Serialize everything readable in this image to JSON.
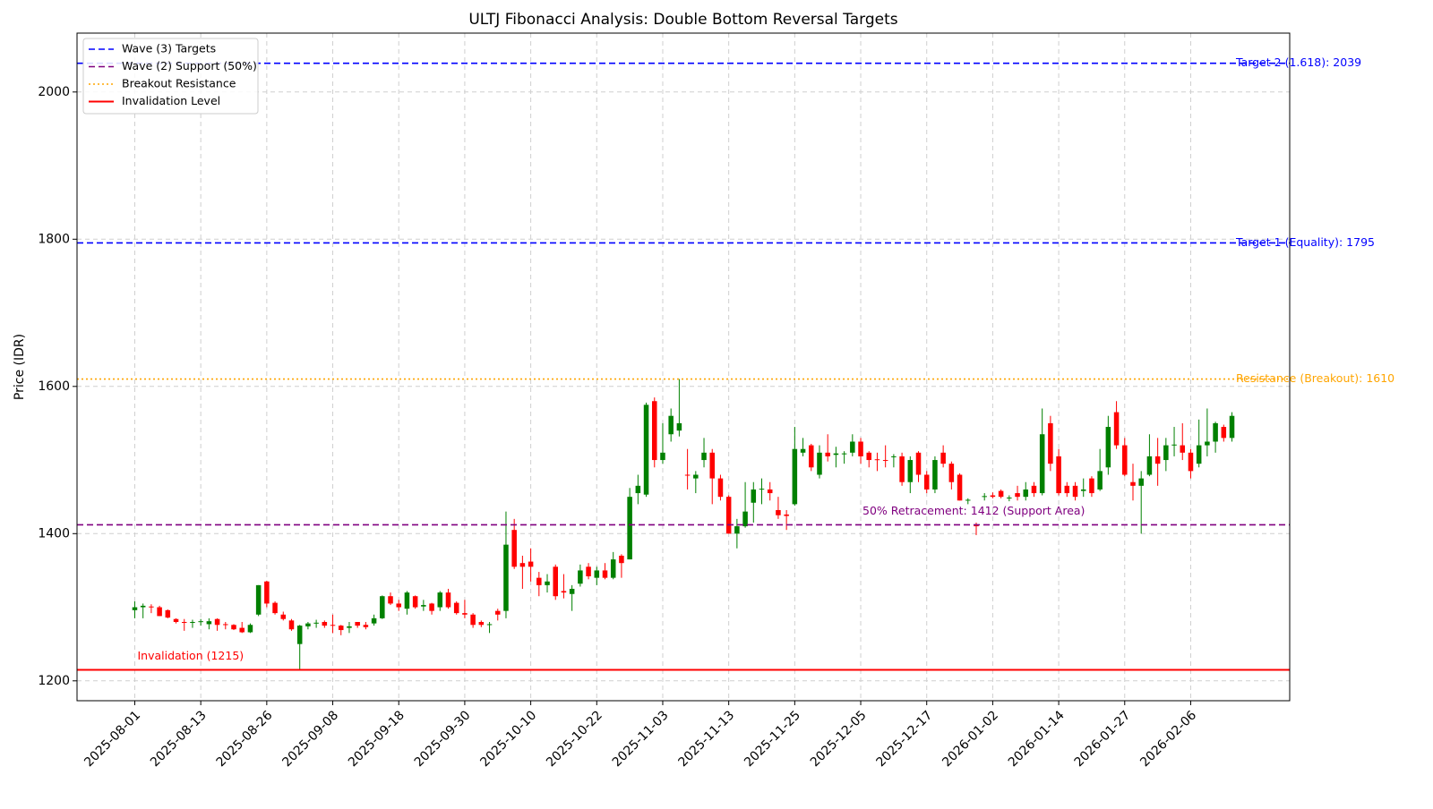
{
  "chart_data": {
    "type": "candlestick",
    "title": "ULTJ Fibonacci Analysis: Double Bottom Reversal Targets",
    "ylabel": "Price (IDR)",
    "categories": [
      "2025-08-01",
      null,
      null,
      null,
      null,
      null,
      null,
      null,
      "2025-08-13",
      null,
      null,
      null,
      null,
      null,
      null,
      null,
      "2025-08-26",
      null,
      null,
      null,
      null,
      null,
      null,
      null,
      "2025-09-08",
      null,
      null,
      null,
      null,
      null,
      null,
      null,
      "2025-09-18",
      null,
      null,
      null,
      null,
      null,
      null,
      null,
      "2025-09-30",
      null,
      null,
      null,
      null,
      null,
      null,
      null,
      "2025-10-10",
      null,
      null,
      null,
      null,
      null,
      null,
      null,
      "2025-10-22",
      null,
      null,
      null,
      null,
      null,
      null,
      null,
      "2025-11-03",
      null,
      null,
      null,
      null,
      null,
      null,
      null,
      "2025-11-13",
      null,
      null,
      null,
      null,
      null,
      null,
      null,
      "2025-11-25",
      null,
      null,
      null,
      null,
      null,
      null,
      null,
      "2025-12-05",
      null,
      null,
      null,
      null,
      null,
      null,
      null,
      "2025-12-17",
      null,
      null,
      null,
      null,
      null,
      null,
      null,
      "2026-01-02",
      null,
      null,
      null,
      null,
      null,
      null,
      null,
      "2026-01-14",
      null,
      null,
      null,
      null,
      null,
      null,
      null,
      "2026-01-27",
      null,
      null,
      null,
      null,
      null,
      null,
      null,
      "2026-02-06",
      null,
      null,
      null,
      null,
      null
    ],
    "open": [
      1296,
      1300,
      1301,
      1300,
      1296,
      1284,
      1280,
      1279,
      1280,
      1277,
      1284,
      1277,
      1276,
      1272,
      1266,
      1290,
      1335,
      1306,
      1290,
      1282,
      1250,
      1274,
      1278,
      1280,
      1276,
      1275,
      1272,
      1280,
      1276,
      1278,
      1285,
      1315,
      1305,
      1298,
      1315,
      1301,
      1305,
      1300,
      1320,
      1306,
      1292,
      1290,
      1280,
      1276,
      1295,
      1295,
      1405,
      1360,
      1362,
      1340,
      1330,
      1355,
      1322,
      1318,
      1332,
      1355,
      1340,
      1350,
      1340,
      1370,
      1365,
      1455,
      1453,
      1580,
      1500,
      1535,
      1540,
      1480,
      1475,
      1500,
      1510,
      1475,
      1450,
      1400,
      1410,
      1442,
      1460,
      1460,
      1432,
      1426,
      1440,
      1510,
      1520,
      1480,
      1510,
      1507,
      1508,
      1510,
      1525,
      1510,
      1501,
      1500,
      1504,
      1505,
      1470,
      1510,
      1480,
      1460,
      1510,
      1495,
      1480,
      1445,
      1412,
      1450,
      1452,
      1458,
      1448,
      1455,
      1450,
      1465,
      1455,
      1550,
      1505,
      1465,
      1465,
      1458,
      1475,
      1460,
      1490,
      1565,
      1520,
      1470,
      1465,
      1480,
      1505,
      1500,
      1520,
      1520,
      1510,
      1495,
      1520,
      1525,
      1545,
      1530
    ],
    "high": [
      1308,
      1305,
      1304,
      1302,
      1297,
      1285,
      1284,
      1283,
      1284,
      1285,
      1285,
      1280,
      1277,
      1280,
      1278,
      1330,
      1336,
      1308,
      1294,
      1284,
      1276,
      1280,
      1283,
      1282,
      1290,
      1276,
      1280,
      1280,
      1280,
      1290,
      1316,
      1320,
      1310,
      1322,
      1316,
      1310,
      1306,
      1322,
      1325,
      1308,
      1310,
      1292,
      1282,
      1280,
      1298,
      1430,
      1420,
      1370,
      1380,
      1348,
      1345,
      1358,
      1345,
      1330,
      1358,
      1360,
      1355,
      1360,
      1375,
      1372,
      1462,
      1480,
      1578,
      1585,
      1550,
      1570,
      1610,
      1515,
      1485,
      1530,
      1515,
      1480,
      1452,
      1420,
      1470,
      1470,
      1475,
      1470,
      1450,
      1432,
      1545,
      1530,
      1522,
      1520,
      1535,
      1518,
      1512,
      1535,
      1530,
      1512,
      1510,
      1520,
      1508,
      1510,
      1505,
      1512,
      1485,
      1505,
      1520,
      1498,
      1482,
      1448,
      1415,
      1455,
      1456,
      1460,
      1452,
      1465,
      1470,
      1470,
      1570,
      1560,
      1515,
      1470,
      1470,
      1475,
      1478,
      1515,
      1560,
      1580,
      1530,
      1495,
      1485,
      1535,
      1530,
      1530,
      1545,
      1550,
      1515,
      1555,
      1570,
      1552,
      1548,
      1565
    ],
    "low": [
      1285,
      1285,
      1292,
      1288,
      1285,
      1278,
      1268,
      1272,
      1275,
      1270,
      1268,
      1270,
      1269,
      1265,
      1265,
      1288,
      1300,
      1290,
      1282,
      1268,
      1216,
      1270,
      1272,
      1272,
      1265,
      1262,
      1265,
      1272,
      1270,
      1275,
      1284,
      1303,
      1295,
      1290,
      1298,
      1295,
      1290,
      1295,
      1298,
      1290,
      1285,
      1272,
      1273,
      1265,
      1282,
      1285,
      1352,
      1325,
      1335,
      1315,
      1320,
      1310,
      1312,
      1295,
      1328,
      1338,
      1330,
      1338,
      1338,
      1340,
      1365,
      1440,
      1450,
      1490,
      1495,
      1525,
      1532,
      1460,
      1455,
      1490,
      1440,
      1445,
      1400,
      1380,
      1408,
      1415,
      1440,
      1445,
      1420,
      1405,
      1438,
      1505,
      1485,
      1475,
      1498,
      1490,
      1495,
      1505,
      1495,
      1490,
      1485,
      1490,
      1490,
      1465,
      1455,
      1470,
      1455,
      1455,
      1490,
      1460,
      1445,
      1440,
      1398,
      1445,
      1448,
      1448,
      1444,
      1445,
      1445,
      1450,
      1452,
      1485,
      1452,
      1450,
      1445,
      1450,
      1450,
      1458,
      1480,
      1515,
      1478,
      1445,
      1400,
      1478,
      1465,
      1485,
      1505,
      1500,
      1475,
      1490,
      1505,
      1510,
      1525,
      1525
    ],
    "close": [
      1300,
      1302,
      1300,
      1288,
      1286,
      1280,
      1279,
      1280,
      1281,
      1281,
      1276,
      1276,
      1270,
      1266,
      1276,
      1330,
      1305,
      1292,
      1284,
      1270,
      1275,
      1278,
      1279,
      1275,
      1275,
      1269,
      1274,
      1275,
      1273,
      1285,
      1315,
      1305,
      1300,
      1320,
      1300,
      1303,
      1295,
      1320,
      1300,
      1292,
      1290,
      1276,
      1276,
      1277,
      1290,
      1385,
      1355,
      1355,
      1355,
      1330,
      1335,
      1315,
      1320,
      1325,
      1350,
      1342,
      1350,
      1340,
      1365,
      1360,
      1450,
      1465,
      1575,
      1500,
      1510,
      1560,
      1550,
      1479,
      1480,
      1510,
      1475,
      1450,
      1400,
      1410,
      1430,
      1460,
      1461,
      1455,
      1425,
      1424,
      1515,
      1515,
      1490,
      1510,
      1505,
      1509,
      1509,
      1525,
      1505,
      1500,
      1500,
      1499,
      1505,
      1470,
      1500,
      1480,
      1460,
      1500,
      1495,
      1470,
      1445,
      1446,
      1410,
      1451,
      1450,
      1450,
      1449,
      1450,
      1460,
      1455,
      1535,
      1495,
      1455,
      1455,
      1450,
      1460,
      1455,
      1485,
      1545,
      1520,
      1480,
      1465,
      1475,
      1505,
      1495,
      1520,
      1521,
      1510,
      1485,
      1520,
      1525,
      1550,
      1530,
      1560
    ],
    "up_color": "#008000",
    "down_color": "#ff0000",
    "levels": [
      {
        "name": "Wave (3) Targets",
        "color": "#0000ff",
        "style": "dashed",
        "values": [
          2039,
          1795
        ],
        "labels": [
          "Target 2 (1.618): 2039",
          "Target 1 (Equality): 1795"
        ]
      },
      {
        "name": "Wave (2) Support (50%)",
        "color": "#800080",
        "style": "dashed",
        "values": [
          1412
        ],
        "labels": [
          "50% Retracement: 1412 (Support Area)"
        ]
      },
      {
        "name": "Breakout Resistance",
        "color": "#ffa500",
        "style": "dotted",
        "values": [
          1610
        ],
        "labels": [
          "Resistance (Breakout): 1610"
        ]
      },
      {
        "name": "Invalidation Level",
        "color": "#ff0000",
        "style": "solid",
        "values": [
          1215
        ],
        "labels": [
          "Invalidation (1215)"
        ]
      }
    ],
    "xlim": [
      -7,
      140
    ],
    "ylim": [
      1173,
      2080
    ],
    "yticks": [
      1200,
      1400,
      1600,
      1800,
      2000
    ],
    "grid": true,
    "legend": "upper left"
  }
}
